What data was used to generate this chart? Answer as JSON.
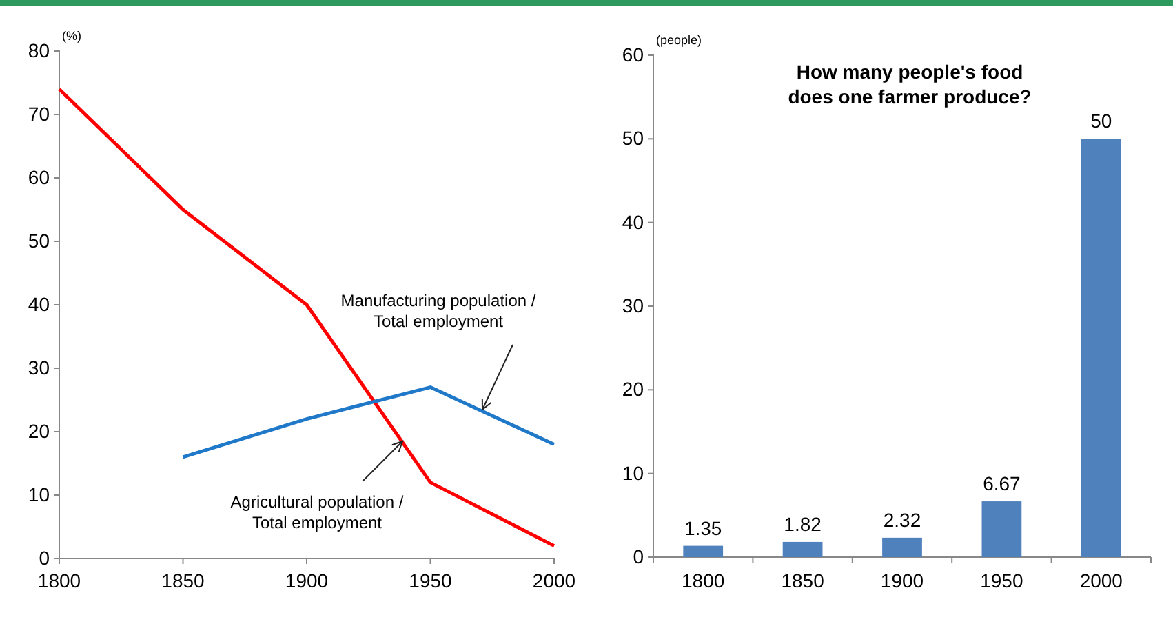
{
  "chart_data": [
    {
      "type": "line",
      "ylabel": "(%)",
      "x": [
        1800,
        1850,
        1900,
        1950,
        2000
      ],
      "xlim": [
        1800,
        2000
      ],
      "xticks": [
        1800,
        1850,
        1900,
        1950,
        2000
      ],
      "ylim": [
        0,
        80
      ],
      "yticks": [
        0,
        10,
        20,
        30,
        40,
        50,
        60,
        70,
        80
      ],
      "grid": false,
      "legend": false,
      "marker": "none",
      "line_style": "solid",
      "series": [
        {
          "name": "Agricultural population / Total employment",
          "color": "#ff0000",
          "values": [
            74,
            55,
            40,
            12,
            2
          ]
        },
        {
          "name": "Manufacturing population / Total employment",
          "color": "#1f78c8",
          "values": [
            null,
            16,
            22,
            27,
            18
          ]
        }
      ]
    },
    {
      "type": "bar",
      "title": "How many people's food does one farmer produce?",
      "ylabel": "(people)",
      "categories": [
        "1800",
        "1850",
        "1900",
        "1950",
        "2000"
      ],
      "values": [
        1.35,
        1.82,
        2.32,
        6.67,
        50
      ],
      "color": "#4f81bd",
      "ylim": [
        0,
        60
      ],
      "yticks": [
        0,
        10,
        20,
        30,
        40,
        50,
        60
      ],
      "grid": false,
      "data_labels": true
    }
  ]
}
